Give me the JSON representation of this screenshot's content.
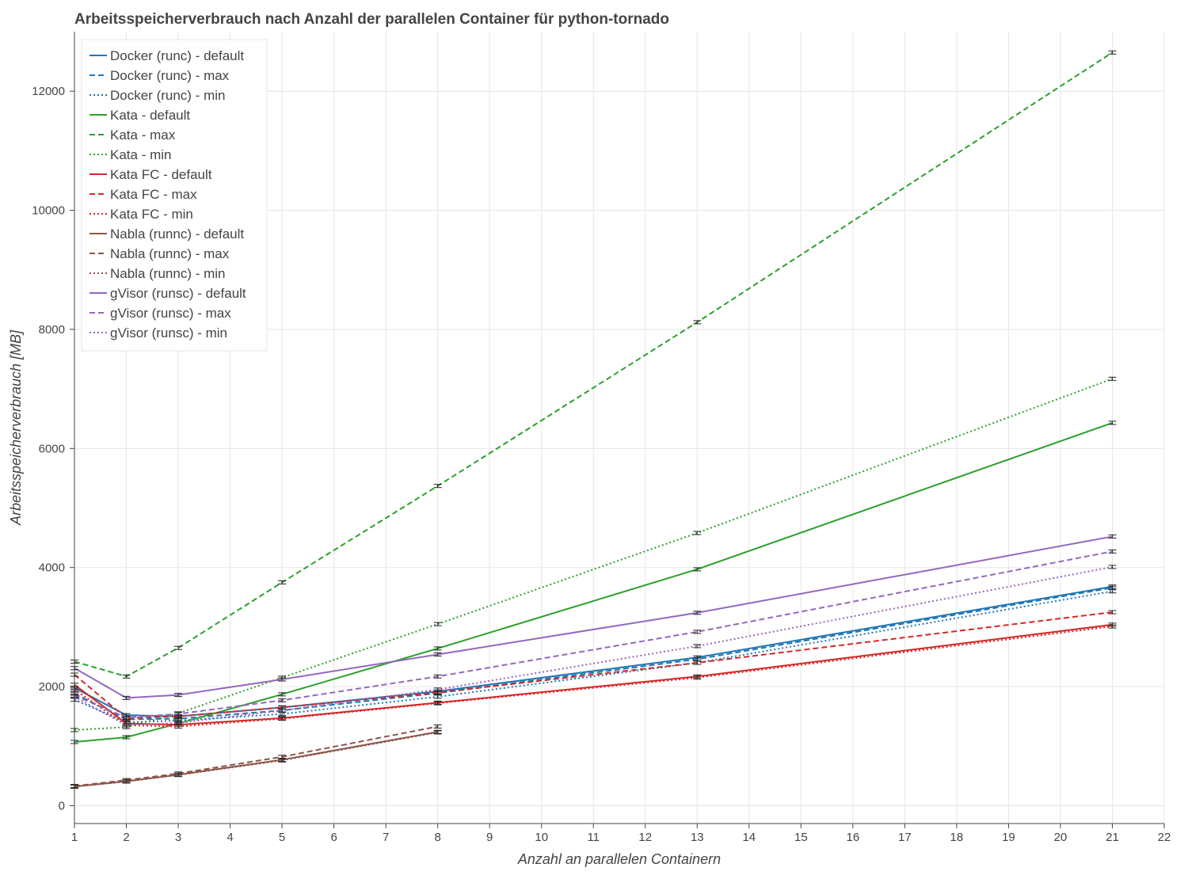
{
  "chart_data": {
    "type": "line",
    "title": "Arbeitsspeicherverbrauch nach Anzahl der parallelen Container für python-tornado",
    "xlabel": "Anzahl an parallelen Containern",
    "ylabel": "Arbeitsspeicherverbrauch [MB]",
    "xlim": [
      1,
      22
    ],
    "ylim": [
      -300,
      13000
    ],
    "x_ticks": [
      1,
      2,
      3,
      4,
      5,
      6,
      7,
      8,
      9,
      10,
      11,
      12,
      13,
      14,
      15,
      16,
      17,
      18,
      19,
      20,
      21,
      22
    ],
    "y_ticks": [
      0,
      2000,
      4000,
      6000,
      8000,
      10000,
      12000
    ],
    "grid": true,
    "legend_position": "top-left",
    "series": [
      {
        "name": "Docker (runc) - default",
        "color": "#1f77b4",
        "dash": "solid",
        "x": [
          1,
          2,
          3,
          5,
          8,
          13,
          21
        ],
        "y": [
          1980,
          1520,
          1500,
          1650,
          1920,
          2490,
          3680
        ]
      },
      {
        "name": "Docker (runc) - max",
        "color": "#1f77b4",
        "dash": "dashed",
        "x": [
          1,
          2,
          3,
          5,
          8,
          13,
          21
        ],
        "y": [
          1880,
          1450,
          1460,
          1600,
          1890,
          2460,
          3660
        ]
      },
      {
        "name": "Docker (runc) - min",
        "color": "#1f77b4",
        "dash": "dotted",
        "x": [
          1,
          2,
          3,
          5,
          8,
          13,
          21
        ],
        "y": [
          1780,
          1400,
          1430,
          1540,
          1830,
          2400,
          3600
        ]
      },
      {
        "name": "Kata - default",
        "color": "#2ca02c",
        "dash": "solid",
        "x": [
          1,
          2,
          3,
          5,
          8,
          13,
          21
        ],
        "y": [
          1070,
          1150,
          1380,
          1870,
          2640,
          3970,
          6430
        ]
      },
      {
        "name": "Kata - max",
        "color": "#2ca02c",
        "dash": "dashed",
        "x": [
          1,
          2,
          3,
          5,
          8,
          13,
          21
        ],
        "y": [
          2420,
          2170,
          2650,
          3750,
          5370,
          8120,
          12650
        ]
      },
      {
        "name": "Kata - min",
        "color": "#2ca02c",
        "dash": "dotted",
        "x": [
          1,
          2,
          3,
          5,
          8,
          13,
          21
        ],
        "y": [
          1270,
          1320,
          1550,
          2150,
          3050,
          4580,
          7170
        ]
      },
      {
        "name": "Kata FC - default",
        "color": "#d62728",
        "dash": "solid",
        "x": [
          1,
          2,
          3,
          5,
          8,
          13,
          21
        ],
        "y": [
          2030,
          1380,
          1360,
          1470,
          1730,
          2170,
          3040
        ]
      },
      {
        "name": "Kata FC - max",
        "color": "#d62728",
        "dash": "dashed",
        "x": [
          1,
          2,
          3,
          5,
          8,
          13,
          21
        ],
        "y": [
          2200,
          1470,
          1500,
          1650,
          1900,
          2400,
          3250
        ]
      },
      {
        "name": "Kata FC - min",
        "color": "#d62728",
        "dash": "dotted",
        "x": [
          1,
          2,
          3,
          5,
          8,
          13,
          21
        ],
        "y": [
          1950,
          1350,
          1330,
          1460,
          1720,
          2150,
          3010
        ]
      },
      {
        "name": "Nabla (runnc) - default",
        "color": "#8c564b",
        "dash": "solid",
        "x": [
          1,
          2,
          3,
          5,
          8
        ],
        "y": [
          320,
          410,
          520,
          770,
          1240
        ]
      },
      {
        "name": "Nabla (runnc) - max",
        "color": "#8c564b",
        "dash": "dashed",
        "x": [
          1,
          2,
          3,
          5,
          8
        ],
        "y": [
          330,
          430,
          540,
          820,
          1330
        ]
      },
      {
        "name": "Nabla (runnc) - min",
        "color": "#8c564b",
        "dash": "dotted",
        "x": [
          1,
          2,
          3,
          5,
          8
        ],
        "y": [
          320,
          405,
          515,
          760,
          1230
        ]
      },
      {
        "name": "gVisor (runsc) - default",
        "color": "#9467bd",
        "dash": "solid",
        "x": [
          1,
          2,
          3,
          5,
          8,
          13,
          21
        ],
        "y": [
          2310,
          1810,
          1860,
          2120,
          2540,
          3240,
          4520
        ]
      },
      {
        "name": "gVisor (runsc) - max",
        "color": "#9467bd",
        "dash": "dashed",
        "x": [
          1,
          2,
          3,
          5,
          8,
          13,
          21
        ],
        "y": [
          1850,
          1480,
          1540,
          1770,
          2170,
          2920,
          4270
        ]
      },
      {
        "name": "gVisor (runsc) - min",
        "color": "#9467bd",
        "dash": "dotted",
        "x": [
          1,
          2,
          3,
          5,
          8,
          13,
          21
        ],
        "y": [
          1830,
          1350,
          1390,
          1600,
          1950,
          2680,
          4010
        ]
      }
    ]
  }
}
